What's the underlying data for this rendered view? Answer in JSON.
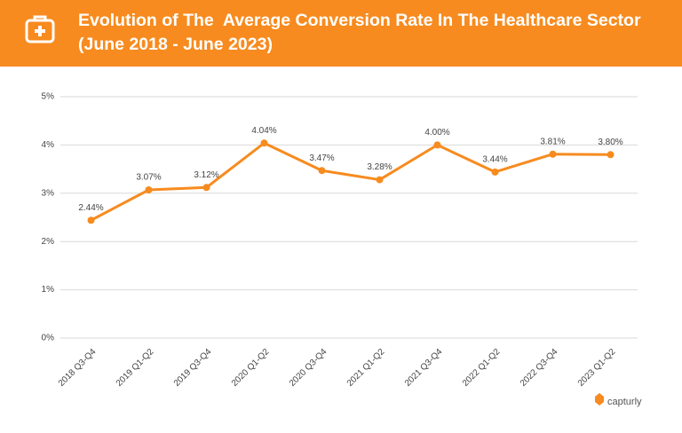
{
  "chart_data": {
    "type": "line",
    "title": "Evolution of The  Average Conversion Rate In The Healthcare Sector",
    "subtitle": "(June 2018 - June 2023)",
    "categories": [
      "2018 Q3-Q4",
      "2019 Q1-Q2",
      "2019 Q3-Q4",
      "2020 Q1-Q2",
      "2020 Q3-Q4",
      "2021 Q1-Q2",
      "2021 Q3-Q4",
      "2022 Q1-Q2",
      "2022 Q3-Q4",
      "2023 Q1-Q2"
    ],
    "values": [
      2.44,
      3.07,
      3.12,
      4.04,
      3.47,
      3.28,
      4.0,
      3.44,
      3.81,
      3.8
    ],
    "value_labels": [
      "2.44%",
      "3.07%",
      "3.12%",
      "4.04%",
      "3.47%",
      "3.28%",
      "4.00%",
      "3.44%",
      "3.81%",
      "3.80%"
    ],
    "color": "#f78b1f",
    "ylim": [
      0,
      5
    ],
    "yticks": [
      {
        "value": 0,
        "label": "0%"
      },
      {
        "value": 1,
        "label": "1%"
      },
      {
        "value": 2,
        "label": "2%"
      },
      {
        "value": 3,
        "label": "3%"
      },
      {
        "value": 4,
        "label": "4%"
      },
      {
        "value": 5,
        "label": "5%"
      }
    ],
    "grid": true,
    "brand": "capturly"
  }
}
